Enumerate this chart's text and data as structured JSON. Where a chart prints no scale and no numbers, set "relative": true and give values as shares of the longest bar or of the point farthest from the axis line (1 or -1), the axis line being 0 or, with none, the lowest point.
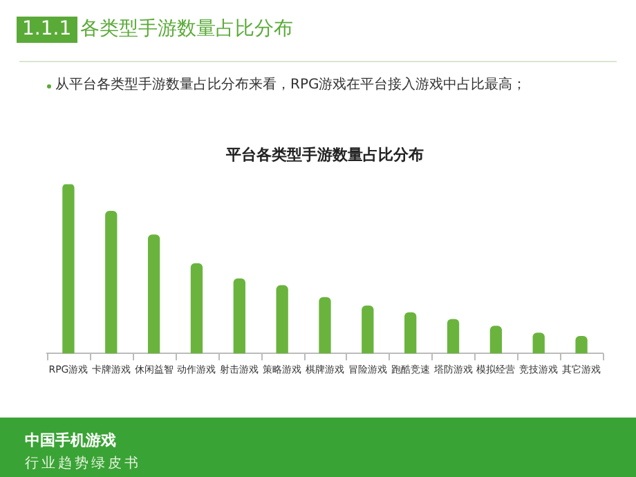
{
  "chart_data": {
    "type": "bar",
    "title": "平台各类型手游数量占比分布",
    "subtitle": "从平台各类型手游数量占比分布来看，RPG游戏在平台接入游戏中占比最高；",
    "annotations": [
      "1.1.1",
      "各类型手游数量占比分布",
      "中国手机游戏",
      "行业趋势绿皮书"
    ],
    "categories": [
      "RPG游戏",
      "卡牌游戏",
      "休闲益智",
      "动作游戏",
      "射击游戏",
      "策略游戏",
      "棋牌游戏",
      "冒险游戏",
      "跑酷竞速",
      "塔防游戏",
      "模拟经营",
      "竞技游戏",
      "其它游戏"
    ],
    "values": [
      1,
      0.84,
      0.7,
      0.53,
      0.44,
      0.4,
      0.33,
      0.28,
      0.24,
      0.2,
      0.16,
      0.12,
      0.1
    ],
    "color": "#6ab43e",
    "relative": true,
    "grid": false,
    "legend": false
  }
}
